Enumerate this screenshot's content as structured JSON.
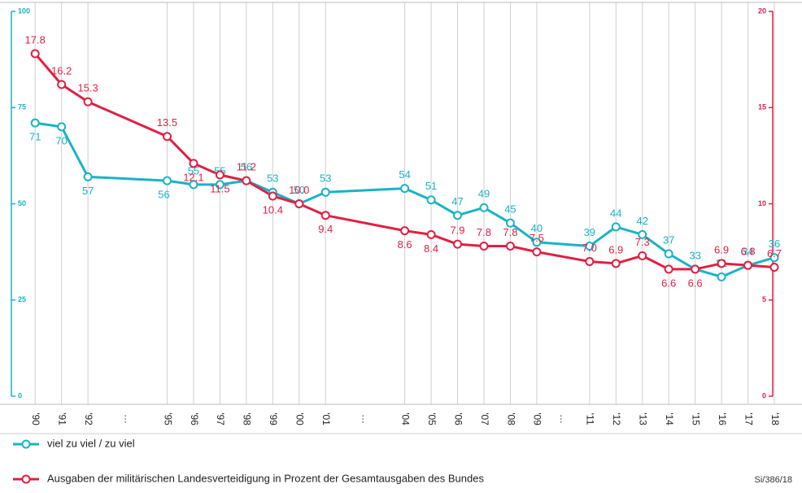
{
  "chart_data": {
    "type": "line",
    "x": [
      1990,
      1991,
      1992,
      1995,
      1996,
      1997,
      1998,
      1999,
      2000,
      2001,
      2004,
      2005,
      2006,
      2007,
      2008,
      2009,
      2011,
      2012,
      2013,
      2014,
      2015,
      2016,
      2017,
      2018
    ],
    "xlim": [
      1989.1,
      2018
    ],
    "xticks": [
      {
        "value": 1990,
        "label": "'90"
      },
      {
        "value": 1991,
        "label": "'91"
      },
      {
        "value": 1992,
        "label": "'92"
      },
      {
        "value": 1995,
        "label": "'95"
      },
      {
        "value": 1996,
        "label": "'96"
      },
      {
        "value": 1997,
        "label": "'97"
      },
      {
        "value": 1998,
        "label": "'98"
      },
      {
        "value": 1999,
        "label": "'99"
      },
      {
        "value": 2000,
        "label": "'00"
      },
      {
        "value": 2001,
        "label": "'01"
      },
      {
        "value": 2004,
        "label": "'04"
      },
      {
        "value": 2005,
        "label": "'05"
      },
      {
        "value": 2006,
        "label": "'06"
      },
      {
        "value": 2007,
        "label": "'07"
      },
      {
        "value": 2008,
        "label": "'08"
      },
      {
        "value": 2009,
        "label": "'09"
      },
      {
        "value": 2011,
        "label": "'11"
      },
      {
        "value": 2012,
        "label": "'12"
      },
      {
        "value": 2013,
        "label": "'13"
      },
      {
        "value": 2014,
        "label": "'14"
      },
      {
        "value": 2015,
        "label": "'15"
      },
      {
        "value": 2016,
        "label": "'16"
      },
      {
        "value": 2017,
        "label": "'17"
      },
      {
        "value": 2018,
        "label": "'18"
      }
    ],
    "xbreaks": [
      {
        "value": 1993.5,
        "label": "…"
      },
      {
        "value": 2002.5,
        "label": "…"
      },
      {
        "value": 2010,
        "label": "…"
      }
    ],
    "ylim": [
      0,
      100
    ],
    "yticks": [
      0,
      25,
      50,
      75,
      100
    ],
    "y2lim": [
      0,
      20
    ],
    "y2ticks": [
      0,
      5,
      10,
      15,
      20
    ],
    "grid": true,
    "series": [
      {
        "name": "viel zu viel / zu viel",
        "color": "#19b3c6",
        "axis": "y",
        "values": [
          71,
          70,
          57,
          56,
          55,
          55,
          56,
          53,
          50,
          53,
          54,
          51,
          47,
          49,
          45,
          40,
          39,
          44,
          42,
          37,
          33,
          31,
          34,
          36
        ]
      },
      {
        "name": "Ausgaben der militärischen Landesverteidigung in Prozent der Gesamtausgaben des Bundes",
        "color": "#e21f43",
        "axis": "y2",
        "values": [
          17.8,
          16.2,
          15.3,
          13.5,
          12.1,
          11.5,
          11.2,
          10.4,
          10.0,
          9.4,
          8.6,
          8.4,
          7.9,
          7.8,
          7.8,
          7.5,
          7.0,
          6.9,
          7.3,
          6.6,
          6.6,
          6.9,
          6.8,
          6.7
        ],
        "value_labels": [
          "17.8",
          "16.2",
          "15.3",
          "13.5",
          "12.1",
          "11.5",
          "11.2",
          "10.4",
          "10.0",
          "9.4",
          "8.6",
          "8.4",
          "7.9",
          "7.8",
          "7.8",
          "7.5",
          "7.0",
          "6.9",
          "7.3",
          "6.6",
          "6.6",
          "6.9",
          "6.8",
          "6.7"
        ]
      }
    ],
    "legend": "bottom-left",
    "source": "Si/386/18"
  }
}
